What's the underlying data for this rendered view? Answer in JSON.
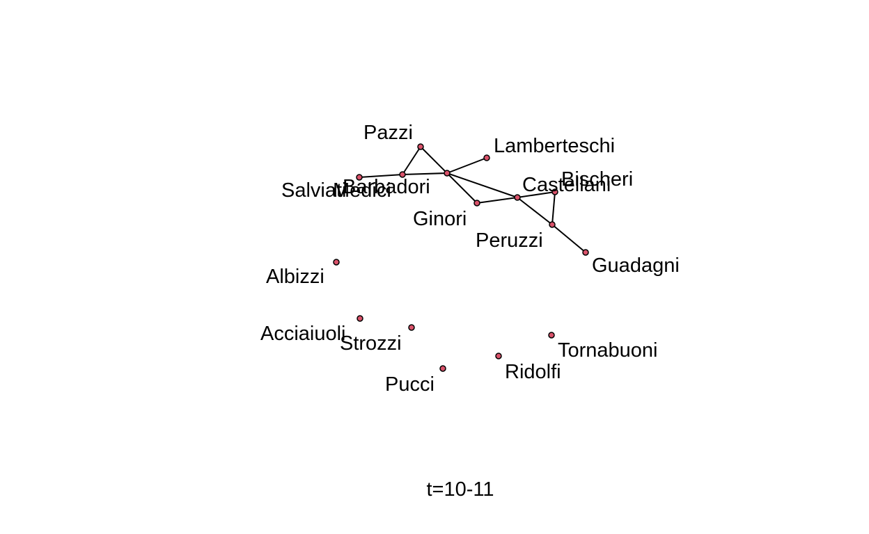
{
  "caption": "t=10-11",
  "node_color": "#d9526a",
  "nodes": [
    {
      "id": "pazzi",
      "label": "Pazzi"
    },
    {
      "id": "lamberteschi",
      "label": "Lamberteschi"
    },
    {
      "id": "salviati",
      "label": "Salviati"
    },
    {
      "id": "medici",
      "label": "Medici"
    },
    {
      "id": "barbadori",
      "label": "Barbadori"
    },
    {
      "id": "castellani",
      "label": "Castellani"
    },
    {
      "id": "bischeri",
      "label": "Bischeri"
    },
    {
      "id": "ginori",
      "label": "Ginori"
    },
    {
      "id": "peruzzi",
      "label": "Peruzzi"
    },
    {
      "id": "guadagni",
      "label": "Guadagni"
    },
    {
      "id": "albizzi",
      "label": "Albizzi"
    },
    {
      "id": "acciaiuoli",
      "label": "Acciaiuoli"
    },
    {
      "id": "strozzi",
      "label": "Strozzi"
    },
    {
      "id": "tornabuoni",
      "label": "Tornabuoni"
    },
    {
      "id": "ridolfi",
      "label": "Ridolfi"
    },
    {
      "id": "pucci",
      "label": "Pucci"
    }
  ],
  "edges": [
    [
      "salviati",
      "medici"
    ],
    [
      "medici",
      "pazzi"
    ],
    [
      "pazzi",
      "barbadori"
    ],
    [
      "medici",
      "barbadori"
    ],
    [
      "barbadori",
      "lamberteschi"
    ],
    [
      "barbadori",
      "ginori"
    ],
    [
      "barbadori",
      "castellani"
    ],
    [
      "ginori",
      "castellani"
    ],
    [
      "castellani",
      "bischeri"
    ],
    [
      "castellani",
      "peruzzi"
    ],
    [
      "bischeri",
      "peruzzi"
    ],
    [
      "peruzzi",
      "guadagni"
    ]
  ]
}
